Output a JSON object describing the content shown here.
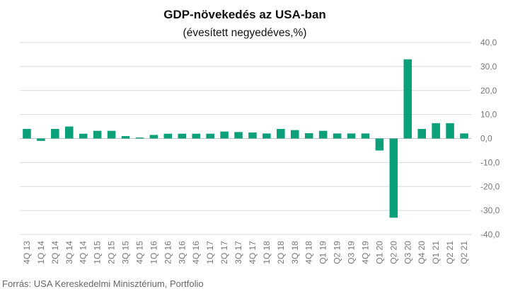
{
  "chart_data": {
    "type": "bar",
    "title": "GDP-növekedés az USA-ban",
    "subtitle": "(évesített negyedéves,%)",
    "source": "Forrás: USA Kereskedelmi Minisztérium, Portfolio",
    "categories": [
      "4Q 13",
      "1Q 14",
      "2Q 14",
      "3Q 14",
      "4Q 14",
      "1Q 15",
      "2Q 15",
      "3Q 15",
      "4Q 15",
      "1Q 16",
      "2Q 16",
      "3Q 16",
      "4Q 16",
      "1Q 17",
      "2Q 17",
      "3Q 17",
      "4Q 17",
      "1Q 18",
      "2Q 18",
      "3Q 18",
      "4Q 18",
      "Q1 19",
      "Q2 19",
      "Q3 19",
      "4Q 19",
      "Q1 20",
      "Q2 20",
      "Q3 20",
      "Q4 20",
      "Q1 21",
      "Q2 21",
      "Q2 21"
    ],
    "axis_tick_labels": [
      "4Q 13",
      "1Q 14",
      "2Q 14",
      "3Q 14",
      "4Q 14",
      "1Q 15",
      "2Q 15",
      "3Q 15",
      "4Q 15",
      "1Q 16",
      "2Q 16",
      "3Q 16",
      "4Q 16",
      "1Q 17",
      "2Q 17",
      "3Q 17",
      "4Q 17",
      "1Q 18",
      "2Q 18",
      "3Q 18",
      "4Q 18",
      "Q1 19",
      "Q2 19",
      "Q3 19",
      "4Q 19",
      "Q1 20",
      "Q2 20",
      "Q3 20",
      "Q4 20",
      "Q1 21",
      "Q2 21",
      "Q2 21"
    ],
    "values": [
      4.0,
      -1.0,
      4.0,
      5.0,
      2.0,
      3.2,
      3.2,
      1.0,
      0.4,
      1.5,
      2.0,
      2.0,
      2.0,
      2.0,
      2.9,
      2.7,
      2.5,
      2.1,
      4.0,
      3.5,
      2.2,
      3.2,
      2.1,
      2.1,
      2.1,
      -5.0,
      -33.0,
      33.0,
      4.0,
      6.4,
      6.4,
      2.1
    ],
    "y_ticks": [
      "40,0",
      "30,0",
      "20,0",
      "10,0",
      "0,0",
      "-10,0",
      "-20,0",
      "-30,0",
      "-40,0"
    ],
    "ylim": [
      -40,
      40
    ],
    "y_axis_side": "right",
    "grid": "horizontal",
    "xlabel": "",
    "ylabel": "",
    "bar_color": "#0aa07a",
    "grid_color": "#d9d9d9"
  }
}
